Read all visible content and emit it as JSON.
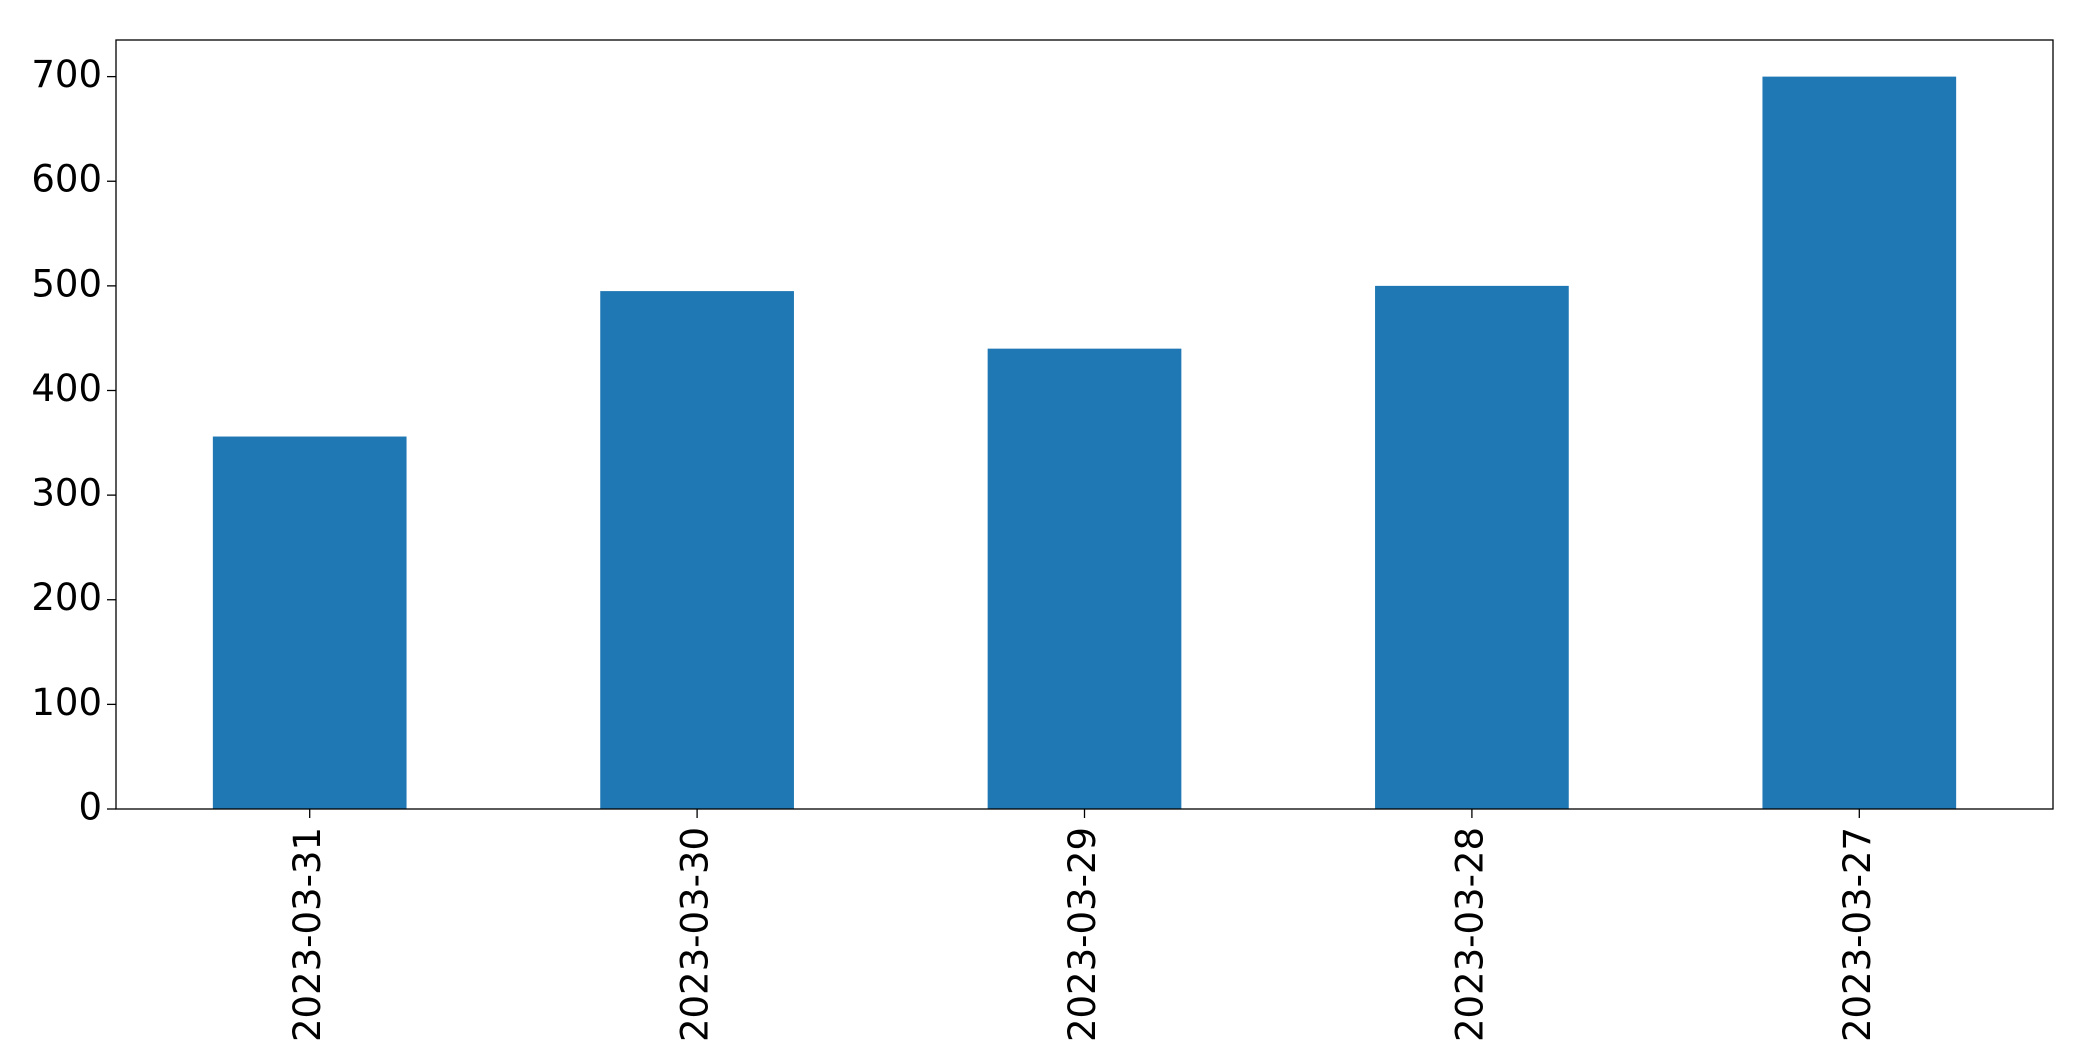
{
  "chart_data": {
    "type": "bar",
    "categories": [
      "2023-03-31",
      "2023-03-30",
      "2023-03-29",
      "2023-03-28",
      "2023-03-27"
    ],
    "values": [
      356,
      495,
      440,
      500,
      700
    ],
    "color": "#1f77b4",
    "ylim": [
      0,
      735
    ],
    "yticks": [
      0,
      100,
      200,
      300,
      400,
      500,
      600,
      700
    ],
    "grid": false
  }
}
